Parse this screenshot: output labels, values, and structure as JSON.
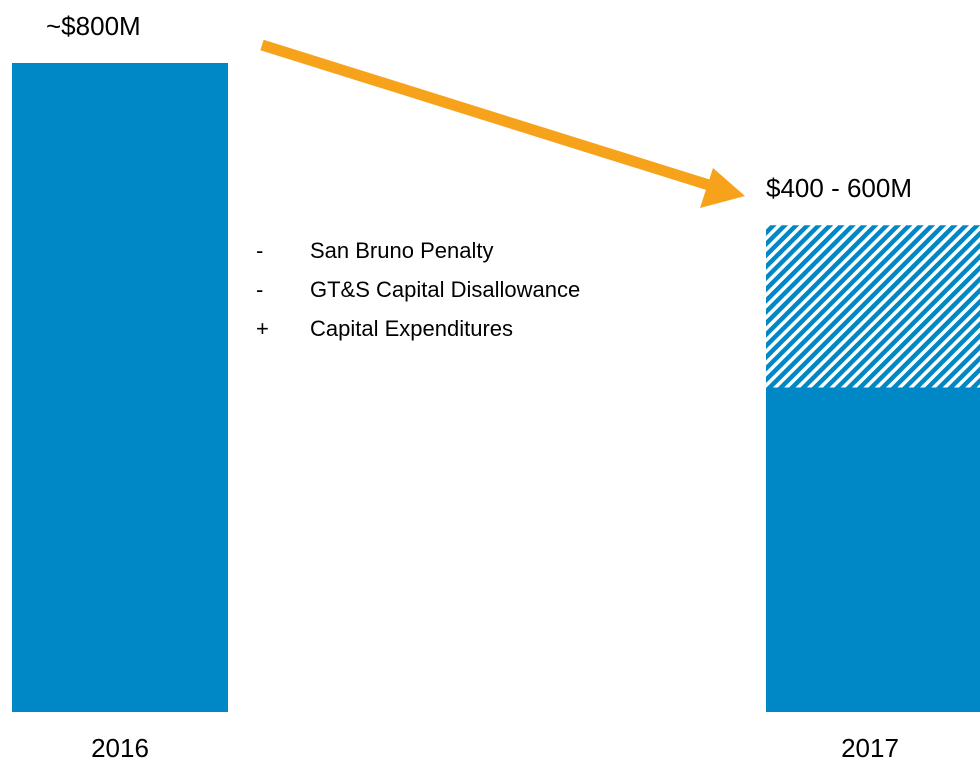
{
  "chart_data": {
    "type": "bar",
    "categories": [
      "2016",
      "2017"
    ],
    "series": [
      {
        "color": "#0088c6",
        "values": [
          800,
          400
        ]
      },
      {
        "color": "#0088c6",
        "hatched": true,
        "values": [
          null,
          200
        ]
      }
    ],
    "value_labels": [
      "~$800M",
      "$400 - 600M"
    ],
    "annotations": [
      {
        "sign": "-",
        "text": "San Bruno Penalty"
      },
      {
        "sign": "-",
        "text": "GT&S Capital Disallowance"
      },
      {
        "sign": "+",
        "text": "Capital Expenditures"
      }
    ],
    "arrow_color": "#f7a21b"
  }
}
